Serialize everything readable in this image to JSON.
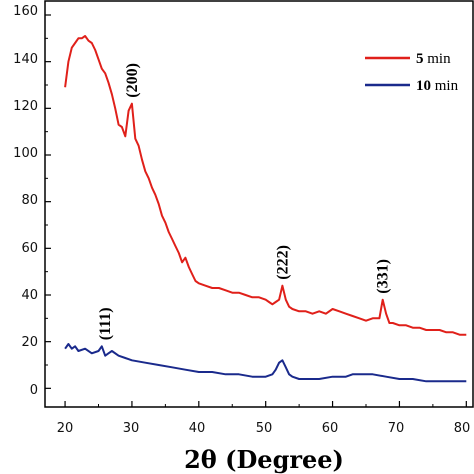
{
  "chart_data": {
    "type": "line",
    "title": "",
    "xlabel": "2θ (Degree)",
    "ylabel": "",
    "xlim": [
      17,
      81
    ],
    "ylim": [
      -8,
      166
    ],
    "xticks": [
      "20",
      "30",
      "40",
      "50",
      "60",
      "70",
      "80"
    ],
    "yticks": [
      "0",
      "20",
      "40",
      "60",
      "80",
      "100",
      "120",
      "140",
      "160"
    ],
    "legend": {
      "position": "top-right"
    },
    "grid": false,
    "series": [
      {
        "name": "5 min",
        "color": "#e0201a",
        "x": [
          20,
          20.5,
          21,
          21.5,
          22,
          22.5,
          23,
          23.5,
          24,
          24.5,
          25,
          25.5,
          26,
          26.5,
          27,
          27.5,
          28,
          28.5,
          29,
          29.5,
          30,
          30.5,
          31,
          31.5,
          32,
          32.5,
          33,
          33.5,
          34,
          34.5,
          35,
          35.5,
          36,
          36.5,
          37,
          37.5,
          38,
          38.5,
          39,
          39.5,
          40,
          41,
          42,
          43,
          44,
          45,
          46,
          47,
          48,
          49,
          50,
          50.5,
          51,
          51.5,
          52,
          52.5,
          53,
          53.5,
          54,
          55,
          56,
          57,
          58,
          59,
          60,
          61,
          62,
          63,
          64,
          65,
          66,
          67,
          67.5,
          68,
          68.5,
          69,
          70,
          71,
          72,
          73,
          74,
          75,
          76,
          77,
          78,
          79,
          80
        ],
        "values": [
          129,
          140,
          146,
          148,
          150,
          150,
          151,
          149,
          148,
          145,
          141,
          137,
          135,
          131,
          126,
          120,
          113,
          112,
          108,
          119,
          122,
          107,
          104,
          98,
          93,
          90,
          86,
          83,
          79,
          74,
          71,
          67,
          64,
          61,
          58,
          54,
          56,
          52,
          49,
          46,
          45,
          44,
          43,
          43,
          42,
          41,
          41,
          40,
          39,
          39,
          38,
          37,
          36,
          37,
          38,
          44,
          38,
          35,
          34,
          33,
          33,
          32,
          33,
          32,
          34,
          33,
          32,
          31,
          30,
          29,
          30,
          30,
          38,
          32,
          28,
          28,
          27,
          27,
          26,
          26,
          25,
          25,
          25,
          24,
          24,
          23,
          23
        ]
      },
      {
        "name": "10 min",
        "color": "#1a2a8c",
        "x": [
          20,
          20.5,
          21,
          21.5,
          22,
          23,
          24,
          25,
          25.5,
          26,
          26.5,
          27,
          28,
          29,
          30,
          32,
          34,
          36,
          38,
          40,
          42,
          44,
          46,
          48,
          50,
          51,
          51.5,
          52,
          52.5,
          53,
          53.5,
          54,
          55,
          56,
          58,
          60,
          62,
          63,
          64,
          65,
          66,
          68,
          70,
          72,
          74,
          76,
          78,
          80
        ],
        "values": [
          17,
          19,
          17,
          18,
          16,
          17,
          15,
          16,
          18,
          14,
          15,
          16,
          14,
          13,
          12,
          11,
          10,
          9,
          8,
          7,
          7,
          6,
          6,
          5,
          5,
          6,
          8,
          11,
          12,
          9,
          6,
          5,
          4,
          4,
          4,
          5,
          5,
          6,
          6,
          6,
          6,
          5,
          4,
          4,
          3,
          3,
          3,
          3
        ]
      }
    ],
    "annotations": [
      {
        "text": "(111)",
        "x": 26
      },
      {
        "text": "(200)",
        "x": 30
      },
      {
        "text": "(222)",
        "x": 52.5
      },
      {
        "text": "(331)",
        "x": 67.5
      }
    ]
  }
}
